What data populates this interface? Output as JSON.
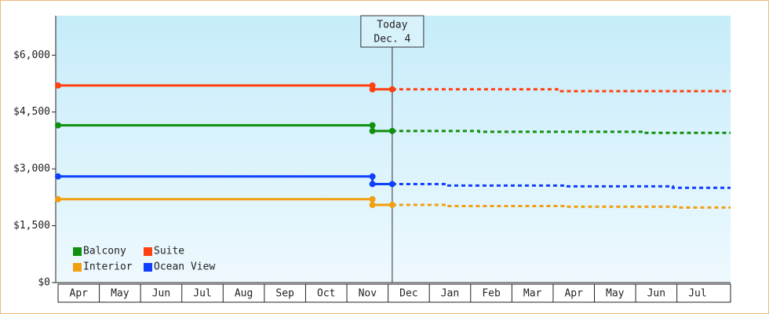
{
  "chart_data": {
    "type": "step-line",
    "categories": [
      "Apr",
      "May",
      "Jun",
      "Jul",
      "Aug",
      "Sep",
      "Oct",
      "Nov",
      "Dec",
      "Jan",
      "Feb",
      "Mar",
      "Apr",
      "May",
      "Jun",
      "Jul"
    ],
    "xlim": [
      0,
      16.3
    ],
    "ylim": [
      0,
      7000
    ],
    "yticks": [
      {
        "value": 0,
        "label": "$0"
      },
      {
        "value": 1500,
        "label": "$1,500"
      },
      {
        "value": 3000,
        "label": "$3,000"
      },
      {
        "value": 4500,
        "label": "$4,500"
      },
      {
        "value": 6000,
        "label": "$6,000"
      }
    ],
    "today": {
      "x": 8.1,
      "label": "Today",
      "date": "Dec. 4"
    },
    "legend": "lower-left",
    "series": [
      {
        "name": "Balcony",
        "color": "#109010",
        "x": [
          0,
          7.62,
          7.62,
          8.1,
          10.2,
          10.2,
          14.2,
          14.2,
          16.3
        ],
        "values": [
          4150,
          4150,
          4000,
          4000,
          4000,
          3980,
          3980,
          3950,
          3950
        ]
      },
      {
        "name": "Suite",
        "color": "#ff4010",
        "x": [
          0,
          7.62,
          7.62,
          8.1,
          12.1,
          12.1,
          16.3
        ],
        "values": [
          5200,
          5200,
          5100,
          5100,
          5100,
          5050,
          5050
        ]
      },
      {
        "name": "Interior",
        "color": "#f0a010",
        "x": [
          0,
          7.62,
          7.62,
          8.1,
          9.4,
          9.4,
          12.3,
          12.3,
          15,
          15,
          16.3
        ],
        "values": [
          2200,
          2200,
          2050,
          2050,
          2050,
          2020,
          2020,
          2000,
          2000,
          1980,
          1980
        ]
      },
      {
        "name": "Ocean View",
        "color": "#1040ff",
        "x": [
          0,
          7.62,
          7.62,
          8.1,
          9.4,
          9.4,
          12.3,
          12.3,
          14.9,
          14.9,
          16.3
        ],
        "values": [
          2800,
          2800,
          2600,
          2600,
          2600,
          2560,
          2560,
          2540,
          2540,
          2500,
          2500
        ]
      }
    ]
  }
}
